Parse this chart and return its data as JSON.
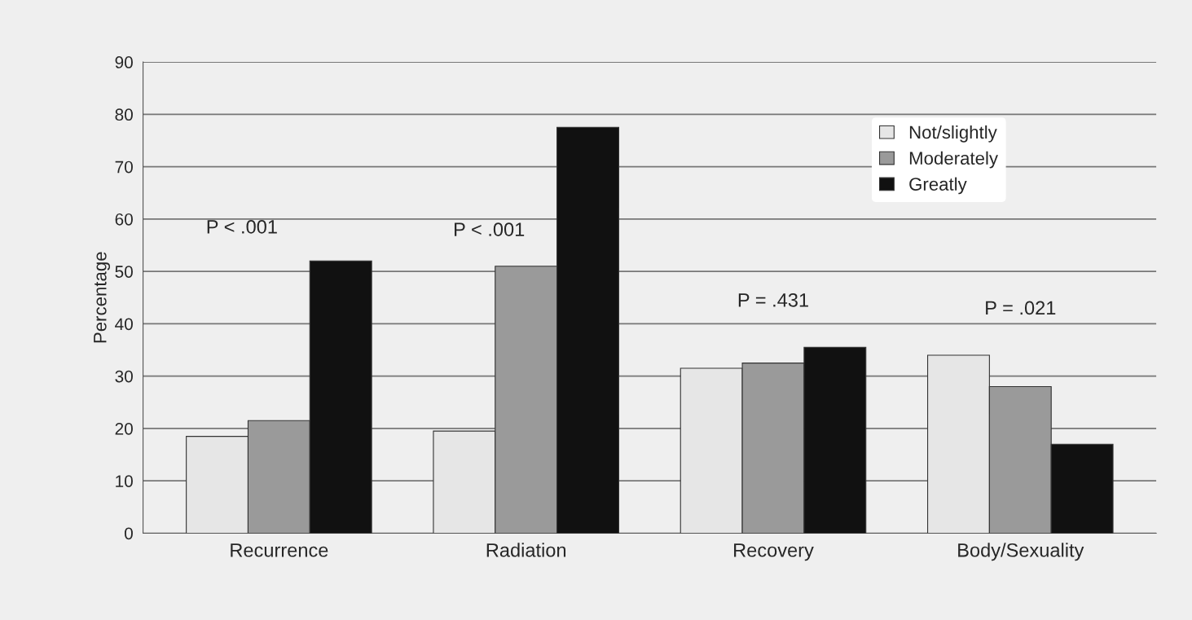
{
  "chart_data": {
    "type": "bar",
    "ylabel": "Percentage",
    "categories": [
      "Recurrence",
      "Radiation",
      "Recovery",
      "Body/Sexuality"
    ],
    "series": [
      {
        "name": "Not/slightly",
        "color": "#e6e6e6",
        "values": [
          18.5,
          19.5,
          31.5,
          34
        ]
      },
      {
        "name": "Moderately",
        "color": "#9a9a9a",
        "values": [
          21.5,
          51,
          32.5,
          28
        ]
      },
      {
        "name": "Greatly",
        "color": "#111111",
        "values": [
          52,
          77.5,
          35.5,
          17
        ]
      }
    ],
    "annotations": [
      "P < .001",
      "P < .001",
      "P = .431",
      "P = .021"
    ],
    "ylim": [
      0,
      90
    ],
    "yticks": [
      0,
      10,
      20,
      30,
      40,
      50,
      60,
      70,
      80,
      90
    ],
    "grid": "y",
    "legend": "top right"
  }
}
